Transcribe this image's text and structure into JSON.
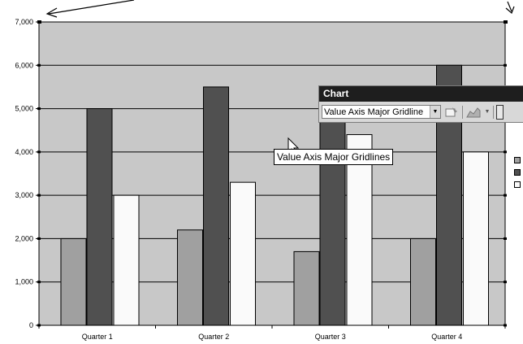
{
  "chart_data": {
    "type": "bar",
    "categories": [
      "Quarter 1",
      "Quarter 2",
      "Quarter 3",
      "Quarter 4"
    ],
    "series": [
      {
        "values": [
          2000,
          2200,
          1700,
          2000
        ],
        "color": "#a0a0a0"
      },
      {
        "values": [
          5000,
          5500,
          4700,
          6000
        ],
        "color": "#505050"
      },
      {
        "values": [
          3000,
          3300,
          4400,
          4000
        ],
        "color": "#fafafa"
      }
    ],
    "yticks": [
      "7,000",
      "6,000",
      "5,000",
      "4,000",
      "3,000",
      "2,000",
      "1,000",
      "0"
    ],
    "ylim": [
      0,
      7000
    ],
    "plot_area_color": "#c8c8c8",
    "grid": true
  },
  "toolbar": {
    "title": "Chart",
    "selected_object": "Value Axis Major Gridline",
    "dropdown_arrow": "▼",
    "format_icon": "format-object-icon",
    "chart_type_icon": "chart-type-icon"
  },
  "tooltip": {
    "text": "Value Axis Major Gridlines"
  },
  "legend": {
    "colors": [
      "#a0a0a0",
      "#505050",
      "#fafafa"
    ]
  }
}
